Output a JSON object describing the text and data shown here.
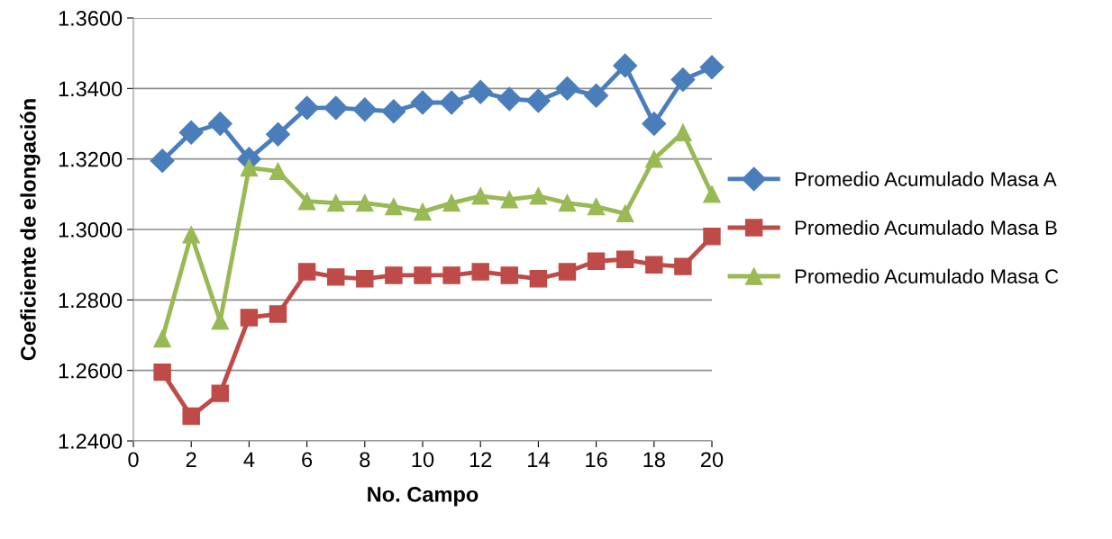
{
  "chart_data": {
    "type": "line",
    "xlabel": "No. Campo",
    "ylabel": "Coeficiente de elongación",
    "x": [
      1,
      2,
      3,
      4,
      5,
      6,
      7,
      8,
      9,
      10,
      11,
      12,
      13,
      14,
      15,
      16,
      17,
      18,
      19,
      20
    ],
    "series": [
      {
        "name": "Promedio Acumulado Masa A",
        "color": "#4a7ebb",
        "marker": "diamond",
        "values": [
          1.3195,
          1.3275,
          1.33,
          1.32,
          1.327,
          1.3345,
          1.3345,
          1.334,
          1.3335,
          1.336,
          1.336,
          1.339,
          1.337,
          1.3365,
          1.34,
          1.338,
          1.3465,
          1.33,
          1.3425,
          1.346
        ]
      },
      {
        "name": "Promedio Acumulado Masa B",
        "color": "#be4b48",
        "marker": "square",
        "values": [
          1.2595,
          1.247,
          1.2535,
          1.275,
          1.276,
          1.288,
          1.2865,
          1.286,
          1.287,
          1.287,
          1.287,
          1.288,
          1.287,
          1.286,
          1.288,
          1.291,
          1.2915,
          1.29,
          1.2895,
          1.298
        ]
      },
      {
        "name": "Promedio Acumulado Masa C",
        "color": "#98b954",
        "marker": "triangle",
        "values": [
          1.269,
          1.2985,
          1.274,
          1.3175,
          1.3165,
          1.308,
          1.3075,
          1.3075,
          1.3065,
          1.305,
          1.3075,
          1.3095,
          1.3085,
          1.3095,
          1.3075,
          1.3065,
          1.3045,
          1.32,
          1.3275,
          1.31
        ]
      }
    ],
    "xlim": [
      0,
      20
    ],
    "xticks": [
      0,
      2,
      4,
      6,
      8,
      10,
      12,
      14,
      16,
      18,
      20
    ],
    "ylim": [
      1.24,
      1.36
    ],
    "yticks": [
      {
        "value": 1.24,
        "label": "1.2400"
      },
      {
        "value": 1.26,
        "label": "1.2600"
      },
      {
        "value": 1.28,
        "label": "1.2800"
      },
      {
        "value": 1.3,
        "label": "1.3000"
      },
      {
        "value": 1.32,
        "label": "1.3200"
      },
      {
        "value": 1.34,
        "label": "1.3400"
      },
      {
        "value": 1.36,
        "label": "1.3600"
      }
    ],
    "grid": "y",
    "legend": "right",
    "line_style": "solid"
  }
}
